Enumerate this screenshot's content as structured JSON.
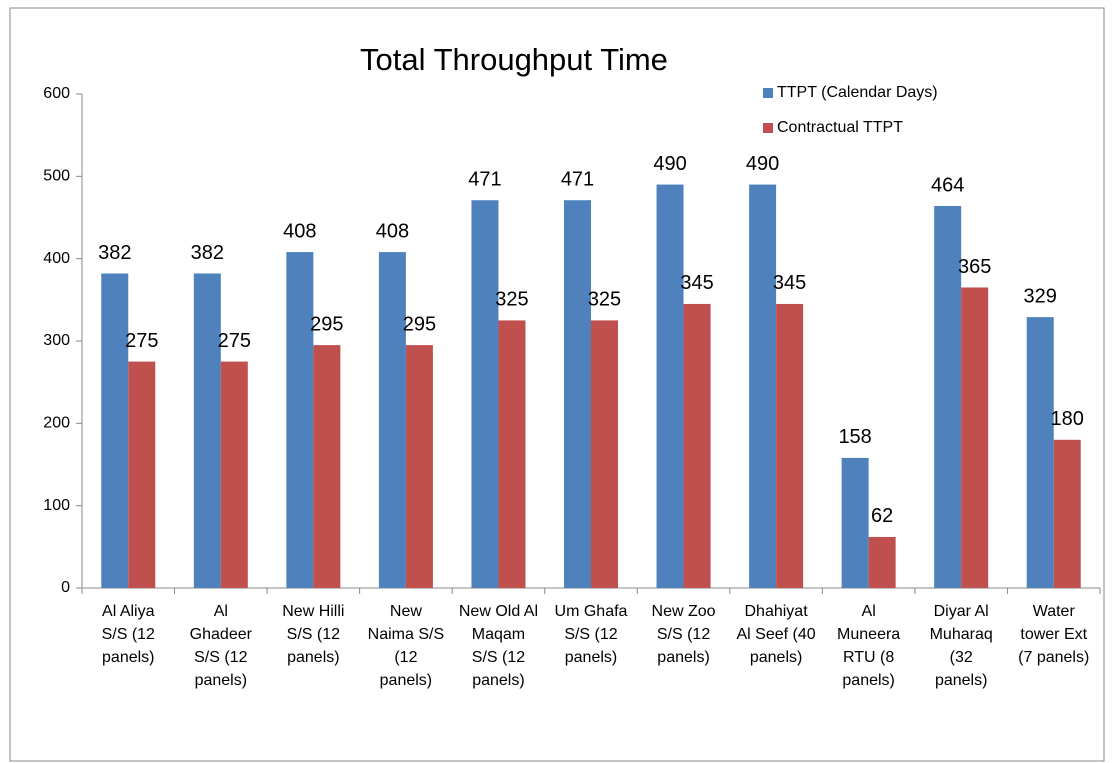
{
  "chart_data": {
    "type": "bar",
    "title": "Total Throughput Time",
    "categories": [
      "Al Aliya S/S (12 panels)",
      "Al Ghadeer S/S (12 panels)",
      "New Hilli S/S (12 panels)",
      "New Naima S/S (12 panels)",
      "New Old Al Maqam S/S (12 panels)",
      "Um Ghafa S/S (12 panels)",
      "New Zoo S/S (12 panels)",
      "Dhahiyat Al Seef (40 panels)",
      "Al Muneera RTU (8 panels)",
      "Diyar Al Muharaq (32 panels)",
      "Water tower Ext (7 panels)"
    ],
    "series": [
      {
        "name": "TTPT (Calendar Days)",
        "color": "#4f81bd",
        "values": [
          382,
          382,
          408,
          408,
          471,
          471,
          490,
          490,
          158,
          464,
          329
        ]
      },
      {
        "name": "Contractual TTPT",
        "color": "#c0504d",
        "values": [
          275,
          275,
          295,
          295,
          325,
          325,
          345,
          345,
          62,
          365,
          180
        ]
      }
    ],
    "ylim": [
      0,
      600
    ],
    "yticks": [
      0,
      100,
      200,
      300,
      400,
      500,
      600
    ],
    "legend": "top-right",
    "grid": false
  }
}
